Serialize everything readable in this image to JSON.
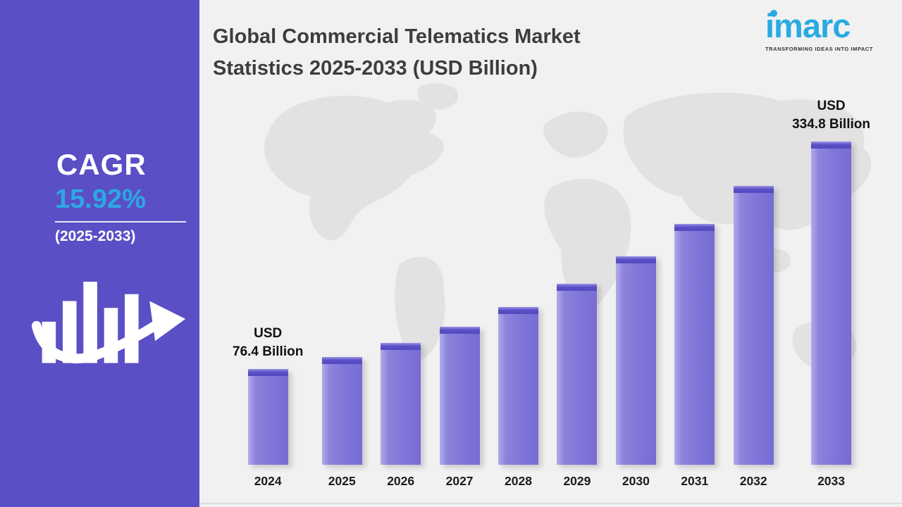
{
  "header": {
    "title_line1": "Global Commercial Telematics Market",
    "title_line2": "Statistics 2025-2033 (USD Billion)"
  },
  "logo": {
    "wordmark": "imarc",
    "tagline": "TRANSFORMING IDEAS INTO IMPACT"
  },
  "sidebar": {
    "cagr_label": "CAGR",
    "cagr_value": "15.92%",
    "period": "(2025-2033)"
  },
  "chart_data": {
    "type": "bar",
    "title": "Global Commercial Telematics Market Statistics 2025-2033 (USD Billion)",
    "categories": [
      "2024",
      "2025",
      "2026",
      "2027",
      "2028",
      "2029",
      "2030",
      "2031",
      "2032",
      "2033"
    ],
    "values": [
      76.4,
      90.1,
      106.2,
      125.1,
      147.5,
      173.9,
      205.0,
      241.6,
      284.8,
      334.8
    ],
    "unit": "USD Billion",
    "ylim": [
      0,
      360
    ],
    "grid": false,
    "legend": false,
    "annotations": [
      {
        "category": "2024",
        "line1": "USD",
        "line2": "76.4 Billion"
      },
      {
        "category": "2033",
        "line1": "USD",
        "line2": "334.8 Billion"
      }
    ]
  },
  "colors": {
    "sidebar_bg": "#5a4fc5",
    "accent_cyan": "#29abe2",
    "bar_body": "#837ad9",
    "bar_cap": "#564cc0",
    "title_text": "#3d3d3d"
  }
}
